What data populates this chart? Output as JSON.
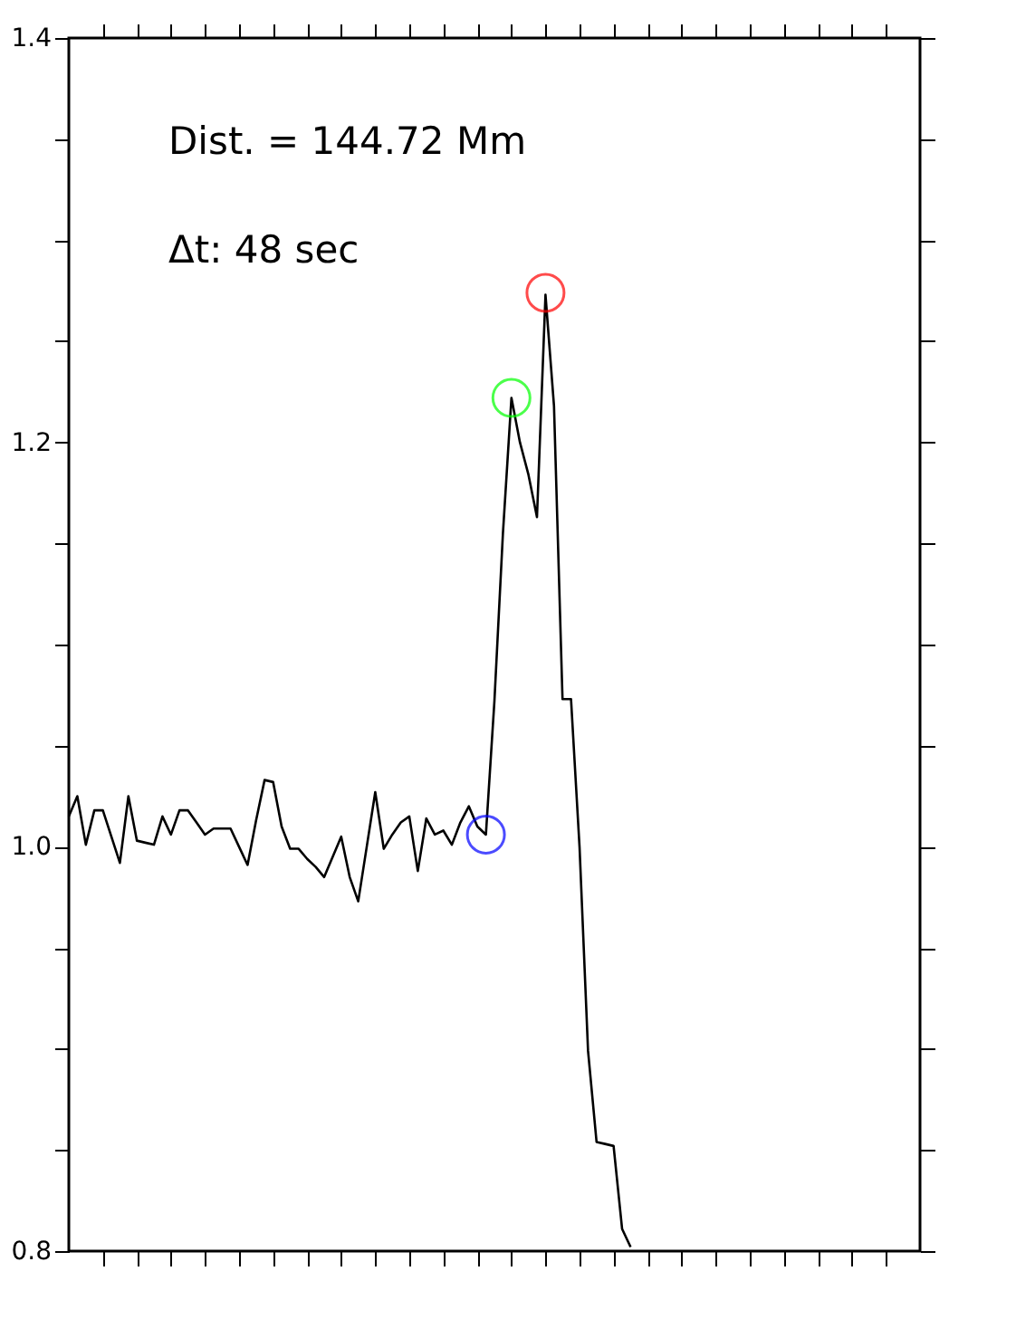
{
  "chart_data": {
    "type": "line",
    "annotations": [
      "Dist. = 144.72 Mm",
      "Δt: 48 sec"
    ],
    "categories": [
      null,
      null,
      null,
      null,
      null,
      null,
      null,
      null,
      null,
      null,
      null,
      null,
      null,
      null,
      null,
      null,
      null,
      null,
      null,
      null,
      null,
      null,
      null,
      null,
      null,
      null,
      null,
      null,
      null,
      null,
      null,
      null,
      null,
      null,
      null,
      null,
      null,
      null,
      null,
      null,
      null,
      null,
      null,
      null,
      null,
      null,
      null,
      null,
      null,
      null,
      null,
      null,
      null,
      null,
      null,
      null,
      null,
      null,
      null,
      null,
      null,
      null,
      null,
      null,
      null,
      null,
      null,
      null,
      null,
      null,
      null,
      null,
      null,
      null,
      null,
      null,
      null,
      null,
      null,
      null,
      null,
      null,
      null,
      null,
      null,
      null,
      null,
      null,
      null,
      null,
      null,
      null,
      null,
      null,
      null,
      null,
      null,
      null,
      null,
      null,
      null
    ],
    "tick_labels": "y",
    "ylim": [
      0.8,
      1.4
    ],
    "yticks": [
      {
        "value": 0.8,
        "label": "0.8"
      },
      {
        "value": 0.85,
        "label": null
      },
      {
        "value": 0.9,
        "label": null
      },
      {
        "value": 0.95,
        "label": null
      },
      {
        "value": 1.0,
        "label": "1.0"
      },
      {
        "value": 1.05,
        "label": null
      },
      {
        "value": 1.1,
        "label": null
      },
      {
        "value": 1.15,
        "label": null
      },
      {
        "value": 1.2,
        "label": "1.2"
      },
      {
        "value": 1.25,
        "label": null
      },
      {
        "value": 1.3,
        "label": null
      },
      {
        "value": 1.35,
        "label": null
      },
      {
        "value": 1.4,
        "label": "1.4"
      }
    ],
    "grid": false,
    "series": [
      {
        "color": "#000000",
        "marker": "none",
        "line_style": "solid",
        "values": [
          1.015,
          1.025,
          1.001,
          1.018,
          1.018,
          1.005,
          0.992,
          1.025,
          1.003,
          1.002,
          1.001,
          1.015,
          1.006,
          1.018,
          1.018,
          1.012,
          1.006,
          1.009,
          1.009,
          1.009,
          1.0,
          0.991,
          1.013,
          1.033,
          1.032,
          1.01,
          0.999,
          0.999,
          0.994,
          0.99,
          0.985,
          0.995,
          1.005,
          0.985,
          0.973,
          1.0,
          1.027,
          0.999,
          1.006,
          1.012,
          1.015,
          0.988,
          1.014,
          1.006,
          1.008,
          1.001,
          1.012,
          1.02,
          1.01,
          1.006,
          1.072,
          1.155,
          1.222,
          1.2,
          1.184,
          1.163,
          1.273,
          1.218,
          1.073,
          1.073,
          1.0,
          0.899,
          0.854,
          0.853,
          0.852,
          0.811,
          0.802,
          null,
          null,
          null,
          null,
          null,
          null,
          null,
          null,
          null,
          null,
          null,
          null,
          null,
          null,
          null,
          null,
          null,
          null,
          null,
          null,
          null,
          null,
          null,
          null,
          null,
          null,
          null,
          null,
          null,
          null,
          null,
          null,
          null,
          null
        ]
      },
      {
        "type": "scatter",
        "color": "#0000ff",
        "marker": "circle",
        "values": [
          null,
          null,
          null,
          null,
          null,
          null,
          null,
          null,
          null,
          null,
          null,
          null,
          null,
          null,
          null,
          null,
          null,
          null,
          null,
          null,
          null,
          null,
          null,
          null,
          null,
          null,
          null,
          null,
          null,
          null,
          null,
          null,
          null,
          null,
          null,
          null,
          null,
          null,
          null,
          null,
          null,
          null,
          null,
          null,
          null,
          null,
          null,
          null,
          null,
          1.006,
          null,
          null,
          null,
          null,
          null,
          null,
          null,
          null,
          null,
          null,
          null,
          null,
          null,
          null,
          null,
          null,
          null,
          null,
          null,
          null,
          null,
          null,
          null,
          null,
          null,
          null,
          null,
          null,
          null,
          null,
          null,
          null,
          null,
          null,
          null,
          null,
          null,
          null,
          null,
          null,
          null,
          null,
          null,
          null,
          null,
          null,
          null,
          null,
          null,
          null,
          null
        ]
      },
      {
        "type": "scatter",
        "color": "#00ff00",
        "marker": "circle",
        "values": [
          null,
          null,
          null,
          null,
          null,
          null,
          null,
          null,
          null,
          null,
          null,
          null,
          null,
          null,
          null,
          null,
          null,
          null,
          null,
          null,
          null,
          null,
          null,
          null,
          null,
          null,
          null,
          null,
          null,
          null,
          null,
          null,
          null,
          null,
          null,
          null,
          null,
          null,
          null,
          null,
          null,
          null,
          null,
          null,
          null,
          null,
          null,
          null,
          null,
          null,
          null,
          null,
          1.222,
          null,
          null,
          null,
          null,
          null,
          null,
          null,
          null,
          null,
          null,
          null,
          null,
          null,
          null,
          null,
          null,
          null,
          null,
          null,
          null,
          null,
          null,
          null,
          null,
          null,
          null,
          null,
          null,
          null,
          null,
          null,
          null,
          null,
          null,
          null,
          null,
          null,
          null,
          null,
          null,
          null,
          null,
          null,
          null,
          null,
          null,
          null,
          null
        ]
      },
      {
        "type": "scatter",
        "color": "#ff0000",
        "marker": "circle",
        "values": [
          null,
          null,
          null,
          null,
          null,
          null,
          null,
          null,
          null,
          null,
          null,
          null,
          null,
          null,
          null,
          null,
          null,
          null,
          null,
          null,
          null,
          null,
          null,
          null,
          null,
          null,
          null,
          null,
          null,
          null,
          null,
          null,
          null,
          null,
          null,
          null,
          null,
          null,
          null,
          null,
          null,
          null,
          null,
          null,
          null,
          null,
          null,
          null,
          null,
          null,
          null,
          null,
          null,
          null,
          null,
          null,
          1.274,
          null,
          null,
          null,
          null,
          null,
          null,
          null,
          null,
          null,
          null,
          null,
          null,
          null,
          null,
          null,
          null,
          null,
          null,
          null,
          null,
          null,
          null,
          null,
          null,
          null,
          null,
          null,
          null,
          null,
          null,
          null,
          null,
          null,
          null,
          null,
          null,
          null,
          null,
          null,
          null,
          null,
          null,
          null,
          null
        ]
      }
    ]
  }
}
